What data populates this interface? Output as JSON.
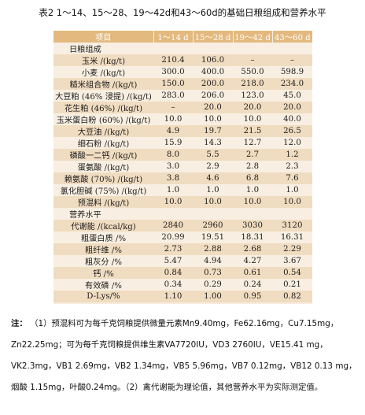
{
  "caption": "表2 1～14、15～28、19～42d和43～60d的基础日粮组成和营养水平",
  "table": {
    "headers": [
      "项目",
      "1～14 d",
      "15～28 d",
      "19～42 d",
      "43～60 d"
    ],
    "rows": [
      {
        "label": "日粮组成",
        "section": true,
        "values": [
          "",
          "",
          "",
          ""
        ]
      },
      {
        "label": "玉米 /(kg/t)",
        "values": [
          "210.4",
          "106.0",
          "–",
          "–"
        ]
      },
      {
        "label": "小麦 /(kg/t)",
        "values": [
          "300.0",
          "400.0",
          "550.0",
          "598.9"
        ]
      },
      {
        "label": "糙米组合物 /(kg/t)",
        "values": [
          "150.0",
          "200.0",
          "218.0",
          "234.0"
        ]
      },
      {
        "label": "大豆粕 (46% 浸提) /(kg/t)",
        "values": [
          "283.0",
          "206.0",
          "123.0",
          "45.0"
        ]
      },
      {
        "label": "花生粕 (46%) /(kg/t)",
        "values": [
          "–",
          "20.0",
          "20.0",
          "20.0"
        ]
      },
      {
        "label": "玉米蛋白粉 (60%) /(kg/t)",
        "values": [
          "10.0",
          "10.0",
          "10.0",
          "40.0"
        ]
      },
      {
        "label": "大豆油 /(kg/t)",
        "values": [
          "4.9",
          "19.7",
          "21.5",
          "26.5"
        ]
      },
      {
        "label": "细石粉 /(kg/t)",
        "values": [
          "15.9",
          "14.3",
          "12.7",
          "12.0"
        ]
      },
      {
        "label": "磷酸一二钙 /(kg/t)",
        "values": [
          "8.0",
          "5.5",
          "2.7",
          "1.2"
        ]
      },
      {
        "label": "蛋氨酸 /(kg/t)",
        "values": [
          "3.0",
          "2.9",
          "2.8",
          "2.3"
        ]
      },
      {
        "label": "赖氨酸 (70%) /(kg/t)",
        "values": [
          "3.8",
          "4.6",
          "6.8",
          "7.6"
        ]
      },
      {
        "label": "氯化胆碱 (75%) /(kg/t)",
        "values": [
          "1.0",
          "1.0",
          "1.0",
          "1.0"
        ]
      },
      {
        "label": "预混料 /(kg/t)",
        "values": [
          "10.0",
          "10.0",
          "10.0",
          "10.0"
        ]
      },
      {
        "label": "营养水平",
        "section": true,
        "values": [
          "",
          "",
          "",
          ""
        ]
      },
      {
        "label": "代谢能 /(kcal/kg)",
        "values": [
          "2840",
          "2960",
          "3030",
          "3120"
        ]
      },
      {
        "label": "粗蛋白质 /%",
        "values": [
          "20.99",
          "19.51",
          "18.31",
          "16.31"
        ]
      },
      {
        "label": "粗纤维 /%",
        "values": [
          "2.73",
          "2.88",
          "2.68",
          "2.29"
        ]
      },
      {
        "label": "粗灰分 /%",
        "values": [
          "5.47",
          "4.94",
          "4.27",
          "3.67"
        ]
      },
      {
        "label": "钙 /%",
        "values": [
          "0.84",
          "0.73",
          "0.61",
          "0.54"
        ]
      },
      {
        "label": "有效磷 /%",
        "values": [
          "0.34",
          "0.29",
          "0.24",
          "0.21"
        ]
      },
      {
        "label": "D-Lys/%",
        "values": [
          "1.10",
          "1.00",
          "0.95",
          "0.82"
        ]
      }
    ]
  },
  "notes": {
    "prefix": "注：",
    "lines": [
      "（1）预混料可为每千克饲粮提供微量元素Mn9.40mg，Fe62.16mg，Cu7.15mg，",
      "Zn22.25mg；可为每千克饲粮提供维生素VA7720IU，VD3 2760IU，VE15.41 mg，",
      "VK2.3mg，VB1 2.69mg，VB2 1.34mg，VB5 5.96mg，VB7 0.12mg，VB12 0.13 mg，",
      "烟酸 1.15mg，叶酸0.24mg。（2）禽代谢能为理论值，其他营养水平为实际测定值。"
    ]
  }
}
